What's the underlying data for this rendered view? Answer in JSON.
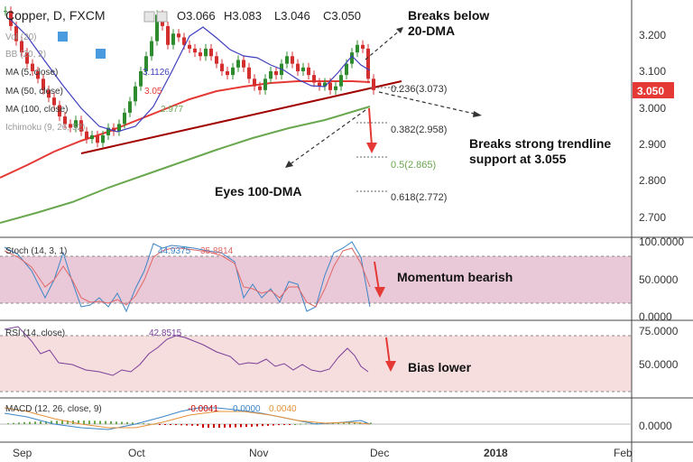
{
  "header": {
    "symbol": "Copper, D, FXCM",
    "ohlc": {
      "o": "O3.066",
      "h": "H3.083",
      "l": "L3.046",
      "c": "C3.050"
    }
  },
  "indicators_main": [
    {
      "label": "Vol (20)"
    },
    {
      "label": "BB (20, 2)"
    },
    {
      "label": "MA (5, close)",
      "value": "3.1126"
    },
    {
      "label": "MA (50, close)",
      "value": "3.05"
    },
    {
      "label": "MA (100, close)",
      "value": "2.977"
    },
    {
      "label": "Ichimoku (9, 26, 52)"
    }
  ],
  "price": {
    "last": "3.050",
    "ticks": [
      "3.200",
      "3.100",
      "3.000",
      "2.900",
      "2.800",
      "2.700"
    ],
    "last_color": "#e53935"
  },
  "fib_levels": [
    {
      "label": "0.236(3.073)",
      "value": 3.073
    },
    {
      "label": "0.382(2.958)",
      "value": 2.958
    },
    {
      "label": "0.5(2.865)",
      "value": 2.865
    },
    {
      "label": "0.618(2.772)",
      "value": 2.772
    }
  ],
  "annotations": {
    "breaks_below_1": "Breaks below",
    "breaks_below_2": "20-DMA",
    "trendline_1": "Breaks strong trendline",
    "trendline_2": "support at 3.055",
    "eyes": "Eyes 100-DMA",
    "momentum": "Momentum bearish",
    "bias": "Bias lower"
  },
  "stoch": {
    "label": "Stoch (14, 3, 1)",
    "v1": "44.9375",
    "v2": "35.8814",
    "ticks": [
      "100.0000",
      "50.0000",
      "0.0000"
    ]
  },
  "rsi": {
    "label": "RSI (14, close)",
    "value": "42.8515",
    "ticks": [
      "75.0000",
      "50.0000"
    ]
  },
  "macd": {
    "label": "MACD (12, 26, close, 9)",
    "v1": "-0.0041",
    "v2": "0.0000",
    "v3": "0.0040",
    "ticks": [
      "0.0000"
    ]
  },
  "x_axis": [
    "Sep",
    "Oct",
    "Nov",
    "Dec",
    "2018",
    "Feb"
  ],
  "chart_data": {
    "type": "candlestick",
    "series": [
      {
        "name": "MA (50, close)",
        "color": "#e53935"
      },
      {
        "name": "MA (100, close)",
        "color": "#6aa84f"
      },
      {
        "name": "MA (5, close)",
        "color": "#3f3fbf"
      }
    ],
    "ylim": [
      2.64,
      3.27
    ],
    "fib_levels": [
      3.073,
      2.958,
      2.865,
      2.772
    ],
    "last_price": 3.05
  }
}
